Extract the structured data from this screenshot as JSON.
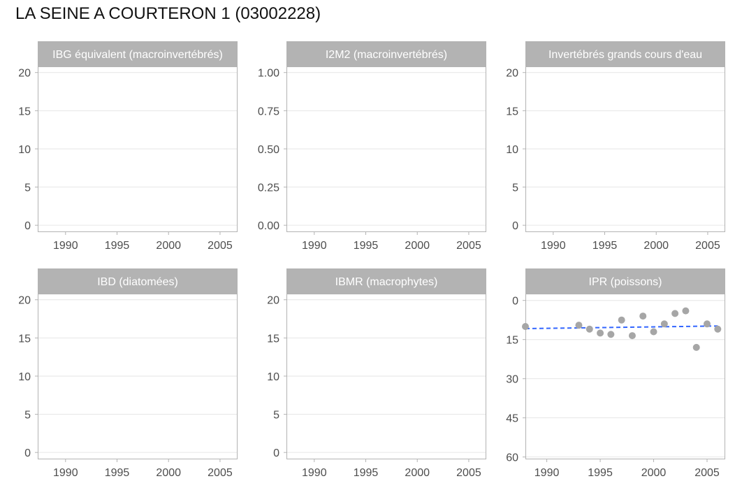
{
  "title": "LA SEINE A COURTERON 1 (03002228)",
  "colors": {
    "strip": "#b3b3b3",
    "grid": "#e6e6e6",
    "border": "#b3b3b3",
    "point": "#a6a6a6",
    "trend": "#3366ff",
    "tick_label": "#4d4d4d"
  },
  "chart_data": [
    {
      "type": "scatter",
      "panel": "IBG équivalent (macroinvertébrés)",
      "x_ticks": [
        1990,
        1995,
        2000,
        2005
      ],
      "xlim": [
        1987.3,
        2006.7
      ],
      "y_ticks": [
        "0",
        "5",
        "10",
        "15",
        "20"
      ],
      "y_tick_values": [
        0,
        5,
        10,
        15,
        20
      ],
      "ylim": [
        -0.9,
        20.8
      ],
      "y_reversed": false,
      "points": [],
      "trend": null
    },
    {
      "type": "scatter",
      "panel": "I2M2 (macroinvertébrés)",
      "x_ticks": [
        1990,
        1995,
        2000,
        2005
      ],
      "xlim": [
        1987.3,
        2006.7
      ],
      "y_ticks": [
        "0.00",
        "0.25",
        "0.50",
        "0.75",
        "1.00"
      ],
      "y_tick_values": [
        0,
        0.25,
        0.5,
        0.75,
        1.0
      ],
      "ylim": [
        -0.045,
        1.04
      ],
      "y_reversed": false,
      "points": [],
      "trend": null
    },
    {
      "type": "scatter",
      "panel": "Invertébrés grands cours d'eau",
      "x_ticks": [
        1990,
        1995,
        2000,
        2005
      ],
      "xlim": [
        1987.3,
        2006.7
      ],
      "y_ticks": [
        "0",
        "5",
        "10",
        "15",
        "20"
      ],
      "y_tick_values": [
        0,
        5,
        10,
        15,
        20
      ],
      "ylim": [
        -0.9,
        20.8
      ],
      "y_reversed": false,
      "points": [],
      "trend": null
    },
    {
      "type": "scatter",
      "panel": "IBD (diatomées)",
      "x_ticks": [
        1990,
        1995,
        2000,
        2005
      ],
      "xlim": [
        1987.3,
        2006.7
      ],
      "y_ticks": [
        "0",
        "5",
        "10",
        "15",
        "20"
      ],
      "y_tick_values": [
        0,
        5,
        10,
        15,
        20
      ],
      "ylim": [
        -0.9,
        20.8
      ],
      "y_reversed": false,
      "points": [],
      "trend": null
    },
    {
      "type": "scatter",
      "panel": "IBMR (macrophytes)",
      "x_ticks": [
        1990,
        1995,
        2000,
        2005
      ],
      "xlim": [
        1987.3,
        2006.7
      ],
      "y_ticks": [
        "0",
        "5",
        "10",
        "15",
        "20"
      ],
      "y_tick_values": [
        0,
        5,
        10,
        15,
        20
      ],
      "ylim": [
        -0.9,
        20.8
      ],
      "y_reversed": false,
      "points": [],
      "trend": null
    },
    {
      "type": "scatter",
      "panel": "IPR (poissons)",
      "x_ticks": [
        1990,
        1995,
        2000,
        2005
      ],
      "xlim": [
        1988,
        2006.7
      ],
      "y_ticks": [
        "0",
        "15",
        "30",
        "45",
        "60"
      ],
      "y_tick_values": [
        0,
        15,
        30,
        45,
        60
      ],
      "ylim": [
        -2.6,
        60.9
      ],
      "y_reversed": true,
      "points": [
        {
          "x": 1988,
          "y": 10.0
        },
        {
          "x": 1993,
          "y": 9.5
        },
        {
          "x": 1994,
          "y": 11.0
        },
        {
          "x": 1995,
          "y": 12.5
        },
        {
          "x": 1996,
          "y": 13.0
        },
        {
          "x": 1997,
          "y": 7.5
        },
        {
          "x": 1998,
          "y": 13.5
        },
        {
          "x": 1999,
          "y": 6.0
        },
        {
          "x": 2000,
          "y": 12.0
        },
        {
          "x": 2001,
          "y": 9.0
        },
        {
          "x": 2002,
          "y": 5.0
        },
        {
          "x": 2003,
          "y": 4.0
        },
        {
          "x": 2004,
          "y": 18.0
        },
        {
          "x": 2005,
          "y": 9.0
        },
        {
          "x": 2006,
          "y": 11.0
        }
      ],
      "trend": {
        "x": [
          1988,
          2006
        ],
        "y": [
          10.8,
          9.8
        ],
        "style": "dashed"
      }
    }
  ]
}
